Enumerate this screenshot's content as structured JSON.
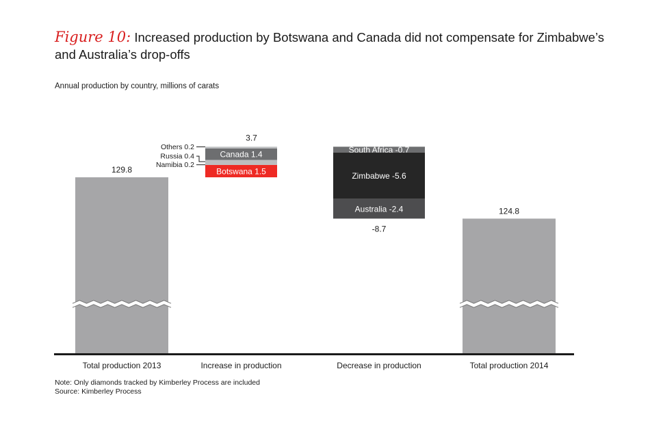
{
  "title": {
    "figure_label": "Figure 10:",
    "text_line1": "Increased production by Botswana and Canada did not compensate for Zimbabwe’s",
    "text_line2": "and Australia’s drop-offs"
  },
  "subtitle": "Annual production by country, millions of carats",
  "note": "Note: Only diamonds tracked by Kimberley Process are included",
  "source": "Source: Kimberley Process",
  "colors": {
    "total": "#a6a6a8",
    "botswana": "#ee2a24",
    "canada": "#6d6e70",
    "russia": "#bcbdbf",
    "namibia": "#bcbdbf",
    "others": "#bcbdbf",
    "south_africa": "#6d6e70",
    "zimbabwe": "#262626",
    "australia": "#4d4d4f",
    "axis": "#1a1a1a"
  },
  "chart_data": {
    "type": "waterfall",
    "categories": [
      "Total production 2013",
      "Increase in production",
      "Decrease in production",
      "Total production 2014"
    ],
    "totals": [
      {
        "category": "Total production 2013",
        "value": 129.8,
        "label": "129.8"
      },
      {
        "category": "Total production 2014",
        "value": 124.8,
        "label": "124.8"
      }
    ],
    "increase": {
      "category": "Increase in production",
      "total_label": "3.7",
      "segments": [
        {
          "name": "Botswana",
          "value": 1.5,
          "label": "Botswana 1.5",
          "inside": true
        },
        {
          "name": "Namibia",
          "value": 0.2,
          "label": "Namibia 0.2",
          "inside": false
        },
        {
          "name": "Russia",
          "value": 0.4,
          "label": "Russia 0.4",
          "inside": false
        },
        {
          "name": "Canada",
          "value": 1.4,
          "label": "Canada 1.4",
          "inside": true
        },
        {
          "name": "Others",
          "value": 0.2,
          "label": "Others 0.2",
          "inside": false
        }
      ]
    },
    "decrease": {
      "category": "Decrease in production",
      "total_label": "-8.7",
      "segments": [
        {
          "name": "South Africa",
          "value": -0.7,
          "label": "South Africa -0.7"
        },
        {
          "name": "Zimbabwe",
          "value": -5.6,
          "label": "Zimbabwe -5.6"
        },
        {
          "name": "Australia",
          "value": -2.4,
          "label": "Australia -2.4"
        }
      ]
    },
    "axis_break": true,
    "grid": false
  }
}
